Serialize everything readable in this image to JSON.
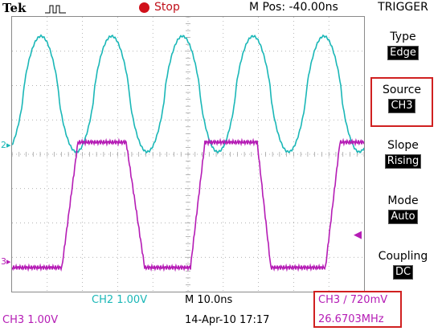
{
  "header": {
    "brand": "Tek",
    "trigger_icon": "trigger-waveform-icon",
    "state_icon": "stop-indicator-icon",
    "state_label": "Stop",
    "mpos": "M Pos: -40.00ns"
  },
  "colors": {
    "ch2": "#1ab7b7",
    "ch3": "#b51cb5",
    "stop": "#d0101a",
    "highlight": "#d02020"
  },
  "channel_markers": {
    "ch2": "2",
    "ch3": "3"
  },
  "menu": {
    "title": "TRIGGER",
    "items": [
      {
        "label": "Type",
        "value": "Edge"
      },
      {
        "label": "Source",
        "value": "CH3"
      },
      {
        "label": "Slope",
        "value": "Rising"
      },
      {
        "label": "Mode",
        "value": "Auto"
      },
      {
        "label": "Coupling",
        "value": "DC"
      }
    ]
  },
  "status": {
    "ch2_scale": "CH2  1.00V",
    "ch3_scale": "CH3  1.00V",
    "timebase": "M 10.0ns",
    "datetime": "14-Apr-10 17:17",
    "trigger_level": "CH3  ∕  720mV",
    "frequency": "26.6703MHz"
  }
}
